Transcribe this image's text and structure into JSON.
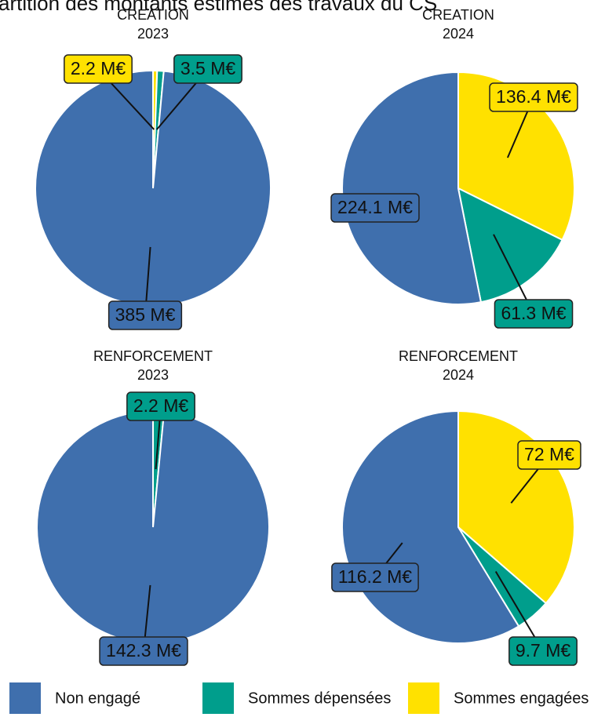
{
  "title": "artition des montants estimés des travaux du CS",
  "legend": {
    "labels": [
      "Non engagé",
      "Sommes dépensées",
      "Sommes engagées"
    ],
    "colors": [
      "#3f6fad",
      "#009e8c",
      "#ffe100"
    ]
  },
  "chart_data": [
    {
      "type": "pie",
      "title": "CREATION",
      "subtitle": "2023",
      "categories": [
        "Sommes engagées",
        "Sommes dépensées",
        "Non engagé"
      ],
      "values": [
        2.2,
        3.5,
        385
      ],
      "value_labels": [
        "2.2 M€",
        "3.5 M€",
        "385 M€"
      ],
      "colors": [
        "#ffe100",
        "#009e8c",
        "#3f6fad"
      ]
    },
    {
      "type": "pie",
      "title": "CREATION",
      "subtitle": "2024",
      "categories": [
        "Sommes engagées",
        "Sommes dépensées",
        "Non engagé"
      ],
      "values": [
        136.4,
        61.3,
        224.1
      ],
      "value_labels": [
        "136.4 M€",
        "61.3 M€",
        "224.1 M€"
      ],
      "colors": [
        "#ffe100",
        "#009e8c",
        "#3f6fad"
      ]
    },
    {
      "type": "pie",
      "title": "RENFORCEMENT",
      "subtitle": "2023",
      "categories": [
        "Sommes dépensées",
        "Non engagé"
      ],
      "values": [
        2.2,
        142.3
      ],
      "value_labels": [
        "2.2 M€",
        "142.3 M€"
      ],
      "colors": [
        "#009e8c",
        "#3f6fad"
      ]
    },
    {
      "type": "pie",
      "title": "RENFORCEMENT",
      "subtitle": "2024",
      "categories": [
        "Sommes engagées",
        "Sommes dépensées",
        "Non engagé"
      ],
      "values": [
        72,
        9.7,
        116.2
      ],
      "value_labels": [
        "72 M€",
        "9.7 M€",
        "116.2 M€"
      ],
      "colors": [
        "#ffe100",
        "#009e8c",
        "#3f6fad"
      ]
    }
  ]
}
